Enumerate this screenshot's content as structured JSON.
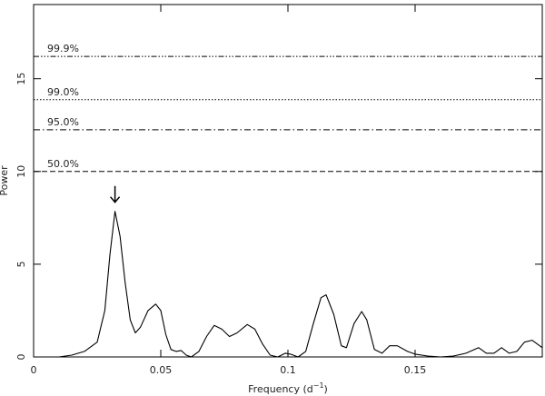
{
  "chart_data": {
    "type": "line",
    "y_label": "Power",
    "x_label": {
      "base": "Frequency (d",
      "superscript": "−1",
      "close": ")"
    },
    "x": [
      0.01,
      0.015,
      0.02,
      0.025,
      0.028,
      0.03,
      0.032,
      0.034,
      0.036,
      0.038,
      0.04,
      0.042,
      0.045,
      0.048,
      0.05,
      0.052,
      0.054,
      0.056,
      0.058,
      0.06,
      0.062,
      0.065,
      0.068,
      0.071,
      0.074,
      0.077,
      0.08,
      0.084,
      0.087,
      0.09,
      0.093,
      0.096,
      0.099,
      0.101,
      0.104,
      0.107,
      0.11,
      0.113,
      0.115,
      0.118,
      0.121,
      0.123,
      0.126,
      0.129,
      0.131,
      0.134,
      0.137,
      0.14,
      0.143,
      0.147,
      0.15,
      0.155,
      0.16,
      0.165,
      0.17,
      0.175,
      0.178,
      0.181,
      0.184,
      0.187,
      0.19,
      0.193,
      0.196,
      0.2
    ],
    "series": [
      {
        "color": "#000000",
        "values": [
          0,
          0.1,
          0.3,
          0.8,
          2.5,
          5.5,
          7.85,
          6.5,
          4,
          2,
          1.3,
          1.6,
          2.5,
          2.85,
          2.5,
          1.2,
          0.4,
          0.3,
          0.35,
          0.1,
          0,
          0.3,
          1.1,
          1.7,
          1.5,
          1.1,
          1.3,
          1.75,
          1.5,
          0.7,
          0.1,
          0,
          0.2,
          0.15,
          0,
          0.3,
          1.8,
          3.2,
          3.35,
          2.3,
          0.6,
          0.5,
          1.8,
          2.45,
          2,
          0.4,
          0.2,
          0.6,
          0.6,
          0.3,
          0.15,
          0.05,
          0,
          0.05,
          0.2,
          0.5,
          0.2,
          0.2,
          0.5,
          0.2,
          0.3,
          0.8,
          0.9,
          0.5
        ]
      }
    ],
    "peak_index": 6,
    "thresholds": [
      {
        "label": "99.9%",
        "value": 16.2,
        "dash": "6 2 1.5 2 1.5 2 1.5 2"
      },
      {
        "label": "99.0%",
        "value": 13.87,
        "dash": "1.5 2"
      },
      {
        "label": "95.0%",
        "value": 12.25,
        "dash": "7 3 1.5 3"
      },
      {
        "label": "50.0%",
        "value": 10.0,
        "dash": "6 3"
      }
    ],
    "xlim": [
      0,
      0.2
    ],
    "ylim": [
      0,
      19
    ],
    "xticks": [
      0,
      0.05,
      0.1,
      0.15
    ],
    "yticks": [
      0,
      5,
      10,
      15
    ]
  }
}
